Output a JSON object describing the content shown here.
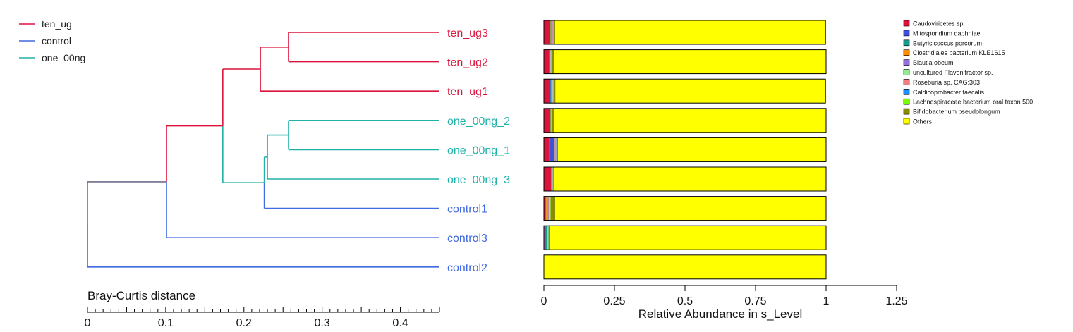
{
  "chart_data": [
    {
      "type": "dendrogram",
      "xlabel": "Bray-Curtis distance",
      "xlim": [
        0,
        0.45
      ],
      "ticks": [
        0,
        0.1,
        0.2,
        0.3,
        0.4
      ],
      "tick_labels": [
        "0",
        "0.1",
        "0.2",
        "0.3",
        "0.4"
      ],
      "groups": [
        {
          "name": "ten_ug",
          "color": "#dc143c"
        },
        {
          "name": "control",
          "color": "#4169e1"
        },
        {
          "name": "one_00ng",
          "color": "#20b2aa"
        }
      ],
      "leaves": [
        {
          "label": "ten_ug3",
          "group": "ten_ug"
        },
        {
          "label": "ten_ug2",
          "group": "ten_ug"
        },
        {
          "label": "ten_ug1",
          "group": "ten_ug"
        },
        {
          "label": "one_00ng_2",
          "group": "one_00ng"
        },
        {
          "label": "one_00ng_1",
          "group": "one_00ng"
        },
        {
          "label": "one_00ng_3",
          "group": "one_00ng"
        },
        {
          "label": "control1",
          "group": "control"
        },
        {
          "label": "control3",
          "group": "control"
        },
        {
          "label": "control2",
          "group": "control"
        }
      ],
      "merges": [
        {
          "id": "m1",
          "children": [
            "ten_ug3",
            "ten_ug2"
          ],
          "height": 0.257,
          "color": "#dc143c"
        },
        {
          "id": "m2",
          "children": [
            "m1",
            "ten_ug1"
          ],
          "height": 0.221,
          "color": "#dc143c"
        },
        {
          "id": "m3",
          "children": [
            "one_00ng_2",
            "one_00ng_1"
          ],
          "height": 0.257,
          "color": "#20b2aa"
        },
        {
          "id": "m4",
          "children": [
            "m3",
            "one_00ng_3"
          ],
          "height": 0.23,
          "color": "#20b2aa"
        },
        {
          "id": "m5",
          "children": [
            "m4",
            "control1"
          ],
          "height": 0.226,
          "color": "#20b2aa"
        },
        {
          "id": "m6",
          "children": [
            "m2",
            "m5"
          ],
          "height": 0.173,
          "color": "#dc143c"
        },
        {
          "id": "m7",
          "children": [
            "m6",
            "control3"
          ],
          "height": 0.101,
          "color": "#6e6e8c"
        },
        {
          "id": "m8",
          "children": [
            "m7",
            "control2"
          ],
          "height": 0.0,
          "color": "#4169e1"
        }
      ]
    },
    {
      "type": "bar",
      "orientation": "horizontal",
      "stacked": true,
      "xlabel": "Relative Abundance in s_Level",
      "xlim": [
        0,
        1.25
      ],
      "ticks": [
        0,
        0.25,
        0.5,
        0.75,
        1,
        1.25
      ],
      "tick_labels": [
        "0",
        "0.25",
        "0.5",
        "0.75",
        "1",
        "1.25"
      ],
      "categories": [
        "ten_ug3",
        "ten_ug2",
        "ten_ug1",
        "one_00ng_2",
        "one_00ng_1",
        "one_00ng_3",
        "control1",
        "control3",
        "control2"
      ],
      "legend_position": "top-right",
      "series": [
        {
          "name": "Caudoviricetes sp.",
          "color": "#dc143c",
          "values": [
            0.02,
            0.018,
            0.022,
            0.02,
            0.018,
            0.025,
            0.005,
            0.002,
            0.0
          ]
        },
        {
          "name": "Mitosporidium daphniae",
          "color": "#3f51d9",
          "values": [
            0.002,
            0.002,
            0.002,
            0.002,
            0.018,
            0.001,
            0.001,
            0.001,
            0.0
          ]
        },
        {
          "name": "Butyricicoccus porcorum",
          "color": "#1a9a8a",
          "values": [
            0.002,
            0.002,
            0.002,
            0.002,
            0.002,
            0.001,
            0.002,
            0.008,
            0.0
          ]
        },
        {
          "name": "Clostridiales bacterium KLE1615",
          "color": "#ff8c00",
          "values": [
            0.002,
            0.001,
            0.002,
            0.001,
            0.001,
            0.001,
            0.008,
            0.001,
            0.0
          ]
        },
        {
          "name": "Blautia obeum",
          "color": "#9370db",
          "values": [
            0.002,
            0.001,
            0.002,
            0.001,
            0.003,
            0.001,
            0.002,
            0.001,
            0.0
          ]
        },
        {
          "name": "uncultured Flavonifractor sp.",
          "color": "#90ee90",
          "values": [
            0.002,
            0.001,
            0.001,
            0.001,
            0.001,
            0.001,
            0.002,
            0.001,
            0.0
          ]
        },
        {
          "name": "Roseburia sp. CAG:303",
          "color": "#f08080",
          "values": [
            0.002,
            0.001,
            0.001,
            0.001,
            0.001,
            0.001,
            0.002,
            0.001,
            0.0
          ]
        },
        {
          "name": "Caldicoprobacter faecalis",
          "color": "#1e90ff",
          "values": [
            0.001,
            0.001,
            0.001,
            0.001,
            0.002,
            0.001,
            0.001,
            0.001,
            0.0
          ]
        },
        {
          "name": "Lachnospiraceae bacterium oral taxon 500",
          "color": "#7cfc00",
          "values": [
            0.001,
            0.001,
            0.001,
            0.001,
            0.001,
            0.001,
            0.001,
            0.001,
            0.0
          ]
        },
        {
          "name": "Bifidobacterium pseudolongum",
          "color": "#8b8b00",
          "values": [
            0.006,
            0.008,
            0.007,
            0.005,
            0.003,
            0.002,
            0.016,
            0.003,
            0.0
          ]
        },
        {
          "name": "Others",
          "color": "#ffff00",
          "values": [
            0.958,
            0.964,
            0.957,
            0.965,
            0.95,
            0.965,
            0.96,
            0.98,
            1.0
          ]
        }
      ]
    }
  ]
}
